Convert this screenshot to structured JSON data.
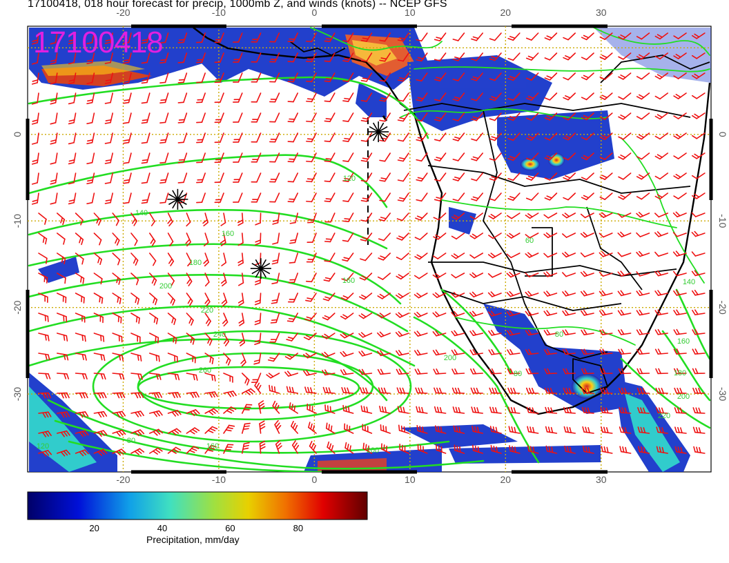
{
  "title": "17100418, 018 hour forecast for precip, 1000mb Z, and winds (knots) -- NCEP GFS",
  "stamp": "17100418",
  "map": {
    "lon_ticks": [
      "-20",
      "-10",
      "0",
      "10",
      "20",
      "30"
    ],
    "lat_ticks": [
      "0",
      "-10",
      "-20",
      "-30"
    ],
    "contour_labels": [
      "120",
      "140",
      "160",
      "180",
      "200",
      "220",
      "240",
      "260",
      "160",
      "200",
      "80",
      "60",
      "80",
      "140",
      "160",
      "180",
      "200",
      "220",
      "80",
      "120",
      "160",
      "200"
    ],
    "high_pressure_value": "260",
    "markers": [
      {
        "lon": -14.3,
        "lat": -7.5,
        "symbol": "asterisk"
      },
      {
        "lon": -5.6,
        "lat": -15.5,
        "symbol": "asterisk"
      },
      {
        "lon": 6.7,
        "lat": 0.3,
        "symbol": "asterisk"
      }
    ],
    "colors": {
      "contour": "#22dd22",
      "wind_barb": "#ee1111",
      "coast": "#000000",
      "grid": "#ccaa00",
      "stamp": "#e020e0"
    }
  },
  "colorbar": {
    "ticks": [
      "20",
      "40",
      "60",
      "80"
    ],
    "caption": "Precipitation, mm/day",
    "range": [
      0,
      100
    ]
  }
}
